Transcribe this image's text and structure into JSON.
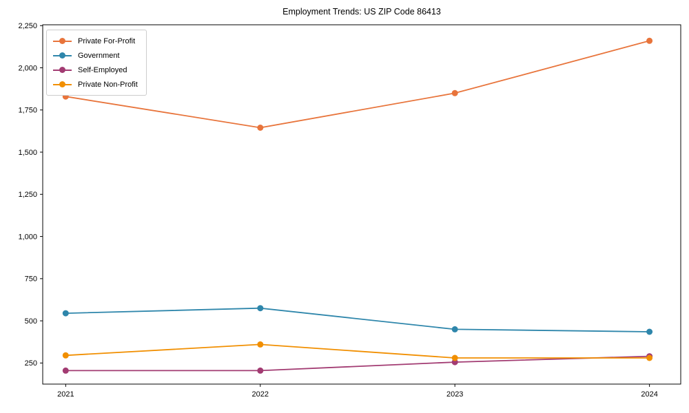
{
  "chart_data": {
    "type": "line",
    "title": "Employment Trends: US ZIP Code 86413",
    "xlabel": "",
    "ylabel": "",
    "categories": [
      "2021",
      "2022",
      "2023",
      "2024"
    ],
    "series": [
      {
        "name": "Private For-Profit",
        "color": "#E8743B",
        "values": [
          1830,
          1645,
          1850,
          2160
        ]
      },
      {
        "name": "Government",
        "color": "#2E86AB",
        "values": [
          545,
          575,
          450,
          435
        ]
      },
      {
        "name": "Self-Employed",
        "color": "#A23B72",
        "values": [
          205,
          205,
          255,
          290
        ]
      },
      {
        "name": "Private Non-Profit",
        "color": "#F18F01",
        "values": [
          295,
          360,
          280,
          280
        ]
      }
    ],
    "yticks": [
      250,
      500,
      750,
      1000,
      1250,
      1500,
      1750,
      2000,
      2250
    ],
    "ylim": [
      125,
      2255
    ],
    "grid": false,
    "legend_position": "upper-left",
    "marker": "circle"
  }
}
